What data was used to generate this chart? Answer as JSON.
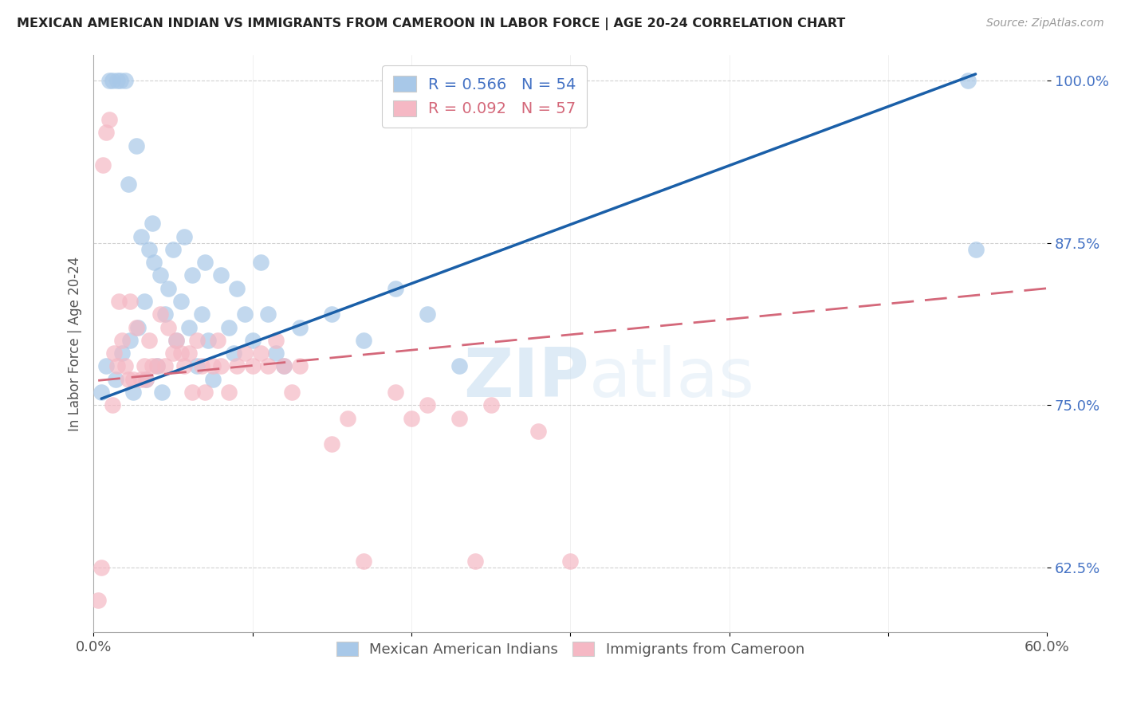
{
  "title": "MEXICAN AMERICAN INDIAN VS IMMIGRANTS FROM CAMEROON IN LABOR FORCE | AGE 20-24 CORRELATION CHART",
  "source": "Source: ZipAtlas.com",
  "ylabel": "In Labor Force | Age 20-24",
  "xlim": [
    0.0,
    0.6
  ],
  "ylim": [
    0.575,
    1.02
  ],
  "xticks": [
    0.0,
    0.1,
    0.2,
    0.3,
    0.4,
    0.5,
    0.6
  ],
  "xticklabels": [
    "0.0%",
    "",
    "",
    "",
    "",
    "",
    "60.0%"
  ],
  "yticks": [
    0.625,
    0.75,
    0.875,
    1.0
  ],
  "yticklabels": [
    "62.5%",
    "75.0%",
    "87.5%",
    "100.0%"
  ],
  "legend_blue_label": "R = 0.566   N = 54",
  "legend_pink_label": "R = 0.092   N = 57",
  "blue_color": "#a8c8e8",
  "pink_color": "#f5b8c4",
  "blue_line_color": "#1a5fa8",
  "pink_line_color": "#d4687a",
  "watermark_zip": "ZIP",
  "watermark_atlas": "atlas",
  "blue_scatter_x": [
    0.005,
    0.008,
    0.01,
    0.012,
    0.014,
    0.015,
    0.017,
    0.018,
    0.02,
    0.022,
    0.023,
    0.025,
    0.027,
    0.028,
    0.03,
    0.032,
    0.033,
    0.035,
    0.037,
    0.038,
    0.04,
    0.042,
    0.043,
    0.045,
    0.047,
    0.05,
    0.052,
    0.055,
    0.057,
    0.06,
    0.062,
    0.065,
    0.068,
    0.07,
    0.072,
    0.075,
    0.08,
    0.085,
    0.088,
    0.09,
    0.095,
    0.1,
    0.105,
    0.11,
    0.115,
    0.12,
    0.13,
    0.15,
    0.17,
    0.19,
    0.21,
    0.23,
    0.55,
    0.555
  ],
  "blue_scatter_y": [
    0.76,
    0.78,
    1.0,
    1.0,
    0.77,
    1.0,
    1.0,
    0.79,
    1.0,
    0.92,
    0.8,
    0.76,
    0.95,
    0.81,
    0.88,
    0.83,
    0.77,
    0.87,
    0.89,
    0.86,
    0.78,
    0.85,
    0.76,
    0.82,
    0.84,
    0.87,
    0.8,
    0.83,
    0.88,
    0.81,
    0.85,
    0.78,
    0.82,
    0.86,
    0.8,
    0.77,
    0.85,
    0.81,
    0.79,
    0.84,
    0.82,
    0.8,
    0.86,
    0.82,
    0.79,
    0.78,
    0.81,
    0.82,
    0.8,
    0.84,
    0.82,
    0.78,
    1.0,
    0.87
  ],
  "pink_scatter_x": [
    0.003,
    0.005,
    0.006,
    0.008,
    0.01,
    0.012,
    0.013,
    0.015,
    0.016,
    0.018,
    0.02,
    0.022,
    0.023,
    0.025,
    0.027,
    0.03,
    0.032,
    0.033,
    0.035,
    0.037,
    0.04,
    0.042,
    0.045,
    0.047,
    0.05,
    0.052,
    0.055,
    0.057,
    0.06,
    0.062,
    0.065,
    0.068,
    0.07,
    0.075,
    0.078,
    0.08,
    0.085,
    0.09,
    0.095,
    0.1,
    0.105,
    0.11,
    0.115,
    0.12,
    0.125,
    0.13,
    0.15,
    0.16,
    0.17,
    0.19,
    0.2,
    0.21,
    0.23,
    0.24,
    0.25,
    0.28,
    0.3
  ],
  "pink_scatter_y": [
    0.6,
    0.625,
    0.935,
    0.96,
    0.97,
    0.75,
    0.79,
    0.78,
    0.83,
    0.8,
    0.78,
    0.77,
    0.83,
    0.77,
    0.81,
    0.77,
    0.78,
    0.77,
    0.8,
    0.78,
    0.78,
    0.82,
    0.78,
    0.81,
    0.79,
    0.8,
    0.79,
    0.78,
    0.79,
    0.76,
    0.8,
    0.78,
    0.76,
    0.78,
    0.8,
    0.78,
    0.76,
    0.78,
    0.79,
    0.78,
    0.79,
    0.78,
    0.8,
    0.78,
    0.76,
    0.78,
    0.72,
    0.74,
    0.63,
    0.76,
    0.74,
    0.75,
    0.74,
    0.63,
    0.75,
    0.73,
    0.63
  ],
  "blue_trendline_x": [
    0.005,
    0.555
  ],
  "blue_trendline_y": [
    0.755,
    1.005
  ],
  "pink_trendline_x": [
    0.003,
    0.6
  ],
  "pink_trendline_y": [
    0.769,
    0.84
  ]
}
